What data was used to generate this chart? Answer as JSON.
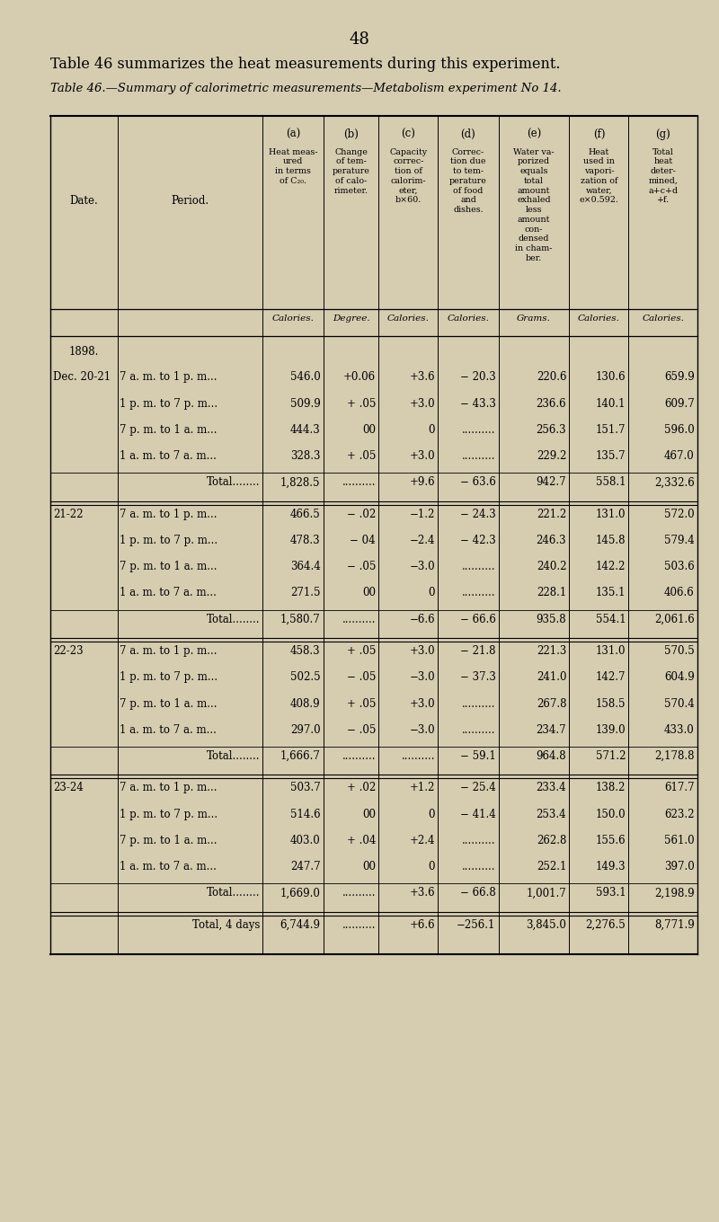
{
  "page_number": "48",
  "intro_text": "Table 46 summarizes the heat measurements during this experiment.",
  "table_title": "Table 46.—Summary of calorimetric measurements—Metabolism experiment No 14.",
  "bg_color": "#d6ccb0",
  "col_headers": [
    "(a)",
    "(b)",
    "(c)",
    "(d)",
    "(e)",
    "(f)",
    "(g)"
  ],
  "col_headers_full": [
    "Heat meas-\nured\nin terms\nof C₂₀.",
    "Change\nof tem-\nperature\nof calo-\nrimeter.",
    "Capacity\ncorrec-\ntion of\ncalorim-\neter,\nb×60.",
    "Correc-\ntion due\nto tem-\nperature\nof food\nand\ndishes.",
    "Water va-\nporized\nequals\ntotal\namount\nexhaled\nless\namount\ncon-\ndensed\nin cham-\nber.",
    "Heat\nused in\nvapori-\nzation of\nwater,\ne×0.592.",
    "Total\nheat\ndeter-\nmined,\na+c+d\n+f."
  ],
  "col_units": [
    "Calories.",
    "Degree.",
    "Calories.",
    "Calories.",
    "Grams.",
    "Calories.",
    "Calories."
  ],
  "date_col_header": "Date.",
  "period_col_header": "Period.",
  "year_label": "1898.",
  "rows": [
    {
      "date": "Dec. 20-21",
      "period": "7 a. m. to 1 p. m...",
      "a": "546.0",
      "b": "+0.06",
      "c": "+3.6",
      "d": "− 20.3",
      "e": "220.6",
      "f": "130.6",
      "g": "659.9",
      "type": "data"
    },
    {
      "date": "",
      "period": "1 p. m. to 7 p. m...",
      "a": "509.9",
      "b": "+ .05",
      "c": "+3.0",
      "d": "− 43.3",
      "e": "236.6",
      "f": "140.1",
      "g": "609.7",
      "type": "data"
    },
    {
      "date": "",
      "period": "7 p. m. to 1 a. m...",
      "a": "444.3",
      "b": "00",
      "c": "0",
      "d": "..........",
      "e": "256.3",
      "f": "151.7",
      "g": "596.0",
      "type": "data"
    },
    {
      "date": "",
      "period": "1 a. m. to 7 a. m...",
      "a": "328.3",
      "b": "+ .05",
      "c": "+3.0",
      "d": "..........",
      "e": "229.2",
      "f": "135.7",
      "g": "467.0",
      "type": "data"
    },
    {
      "date": "",
      "period": "Total........",
      "a": "1,828.5",
      "b": "..........",
      "c": "+9.6",
      "d": "− 63.6",
      "e": "942.7",
      "f": "558.1",
      "g": "2,332.6",
      "type": "total"
    },
    {
      "date": "21-22",
      "period": "7 a. m. to 1 p. m...",
      "a": "466.5",
      "b": "− .02",
      "c": "−1.2",
      "d": "− 24.3",
      "e": "221.2",
      "f": "131.0",
      "g": "572.0",
      "type": "data"
    },
    {
      "date": "",
      "period": "1 p. m. to 7 p. m...",
      "a": "478.3",
      "b": "− 04",
      "c": "−2.4",
      "d": "− 42.3",
      "e": "246.3",
      "f": "145.8",
      "g": "579.4",
      "type": "data"
    },
    {
      "date": "",
      "period": "7 p. m. to 1 a. m...",
      "a": "364.4",
      "b": "− .05",
      "c": "−3.0",
      "d": "..........",
      "e": "240.2",
      "f": "142.2",
      "g": "503.6",
      "type": "data"
    },
    {
      "date": "",
      "period": "1 a. m. to 7 a. m...",
      "a": "271.5",
      "b": "00",
      "c": "0",
      "d": "..........",
      "e": "228.1",
      "f": "135.1",
      "g": "406.6",
      "type": "data"
    },
    {
      "date": "",
      "period": "Total........",
      "a": "1,580.7",
      "b": "..........",
      "c": "−6.6",
      "d": "− 66.6",
      "e": "935.8",
      "f": "554.1",
      "g": "2,061.6",
      "type": "total"
    },
    {
      "date": "22-23",
      "period": "7 a. m. to 1 p. m...",
      "a": "458.3",
      "b": "+ .05",
      "c": "+3.0",
      "d": "− 21.8",
      "e": "221.3",
      "f": "131.0",
      "g": "570.5",
      "type": "data"
    },
    {
      "date": "",
      "period": "1 p. m. to 7 p. m...",
      "a": "502.5",
      "b": "− .05",
      "c": "−3.0",
      "d": "− 37.3",
      "e": "241.0",
      "f": "142.7",
      "g": "604.9",
      "type": "data"
    },
    {
      "date": "",
      "period": "7 p. m. to 1 a. m...",
      "a": "408.9",
      "b": "+ .05",
      "c": "+3.0",
      "d": "..........",
      "e": "267.8",
      "f": "158.5",
      "g": "570.4",
      "type": "data"
    },
    {
      "date": "",
      "period": "1 a. m. to 7 a. m...",
      "a": "297.0",
      "b": "− .05",
      "c": "−3.0",
      "d": "..........",
      "e": "234.7",
      "f": "139.0",
      "g": "433.0",
      "type": "data"
    },
    {
      "date": "",
      "period": "Total........",
      "a": "1,666.7",
      "b": "..........",
      "c": "..........",
      "d": "− 59.1",
      "e": "964.8",
      "f": "571.2",
      "g": "2,178.8",
      "type": "total"
    },
    {
      "date": "23-24",
      "period": "7 a. m. to 1 p. m...",
      "a": "503.7",
      "b": "+ .02",
      "c": "+1.2",
      "d": "− 25.4",
      "e": "233.4",
      "f": "138.2",
      "g": "617.7",
      "type": "data"
    },
    {
      "date": "",
      "period": "1 p. m. to 7 p. m...",
      "a": "514.6",
      "b": "00",
      "c": "0",
      "d": "− 41.4",
      "e": "253.4",
      "f": "150.0",
      "g": "623.2",
      "type": "data"
    },
    {
      "date": "",
      "period": "7 p. m. to 1 a. m...",
      "a": "403.0",
      "b": "+ .04",
      "c": "+2.4",
      "d": "..........",
      "e": "262.8",
      "f": "155.6",
      "g": "561.0",
      "type": "data"
    },
    {
      "date": "",
      "period": "1 a. m. to 7 a. m...",
      "a": "247.7",
      "b": "00",
      "c": "0",
      "d": "..........",
      "e": "252.1",
      "f": "149.3",
      "g": "397.0",
      "type": "data"
    },
    {
      "date": "",
      "period": "Total........",
      "a": "1,669.0",
      "b": "..........",
      "c": "+3.6",
      "d": "− 66.8",
      "e": "1,001.7",
      "f": "593.1",
      "g": "2,198.9",
      "type": "total"
    },
    {
      "date": "",
      "period": "Total, 4 days",
      "a": "6,744.9",
      "b": "..........",
      "c": "+6.6",
      "d": "−256.1",
      "e": "3,845.0",
      "f": "2,276.5",
      "g": "8,771.9",
      "type": "grand_total"
    }
  ]
}
